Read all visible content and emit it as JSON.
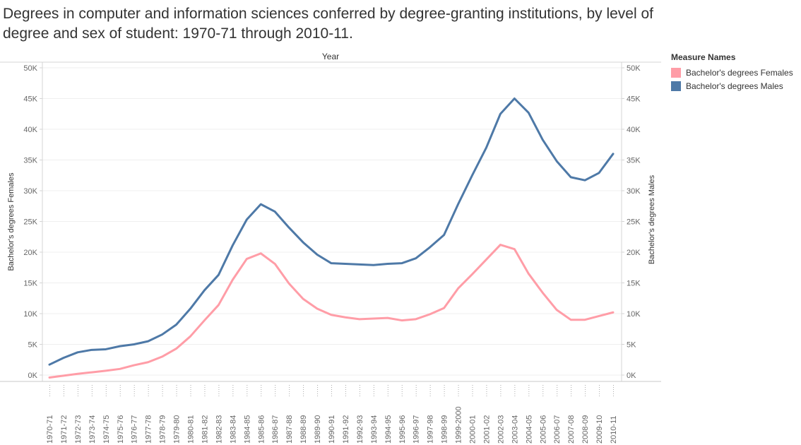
{
  "title": "Degrees in computer and information sciences conferred by degree-granting institutions, by level of degree and sex of student: 1970-71 through 2010-11.",
  "legend": {
    "title": "Measure Names",
    "items": [
      {
        "label": "Bachelor's degrees Females",
        "color": "#ff9da7"
      },
      {
        "label": "Bachelor's degrees Males",
        "color": "#4e79a7"
      }
    ]
  },
  "chart_data": {
    "type": "line",
    "column_header": "Year",
    "ylabel_left": "Bachelor's degrees Females",
    "ylabel_right": "Bachelor's degrees Males",
    "ylim": [
      0,
      50000
    ],
    "yticks": [
      0,
      5000,
      10000,
      15000,
      20000,
      25000,
      30000,
      35000,
      40000,
      45000,
      50000
    ],
    "ytick_labels": [
      "0K",
      "5K",
      "10K",
      "15K",
      "20K",
      "25K",
      "30K",
      "35K",
      "40K",
      "45K",
      "50K"
    ],
    "grid": true,
    "categories": [
      "1970-71",
      "1971-72",
      "1972-73",
      "1973-74",
      "1974-75",
      "1975-76",
      "1976-77",
      "1977-78",
      "1978-79",
      "1979-80",
      "1980-81",
      "1981-82",
      "1982-83",
      "1983-84",
      "1984-85",
      "1985-86",
      "1986-87",
      "1987-88",
      "1988-89",
      "1989-90",
      "1990-91",
      "1991-92",
      "1992-93",
      "1993-94",
      "1994-95",
      "1995-96",
      "1996-97",
      "1997-98",
      "1998-99",
      "1999-2000",
      "2000-01",
      "2001-02",
      "2002-03",
      "2003-04",
      "2004-05",
      "2005-06",
      "2006-07",
      "2007-08",
      "2008-09",
      "2009-10",
      "2010-11"
    ],
    "series": [
      {
        "name": "Bachelor's degrees Females",
        "color": "#ff9da7",
        "values": [
          -400,
          -100,
          200,
          450,
          700,
          1000,
          1600,
          2100,
          3000,
          4300,
          6300,
          8900,
          11400,
          15500,
          18900,
          19800,
          18100,
          14900,
          12400,
          10800,
          9800,
          9400,
          9100,
          9200,
          9300,
          8900,
          9100,
          9900,
          10900,
          14100,
          16400,
          18800,
          21200,
          20500,
          16500,
          13400,
          10600,
          9000,
          9000,
          9600,
          10200
        ]
      },
      {
        "name": "Bachelor's degrees Males",
        "color": "#4e79a7",
        "values": [
          1700,
          2800,
          3700,
          4100,
          4200,
          4700,
          5000,
          5500,
          6600,
          8200,
          10800,
          13800,
          16300,
          21100,
          25300,
          27800,
          26600,
          24000,
          21600,
          19600,
          18200,
          18100,
          18000,
          17900,
          18100,
          18200,
          19000,
          20800,
          22800,
          27800,
          32500,
          37000,
          42500,
          45000,
          42700,
          38300,
          34800,
          32200,
          31700,
          32900,
          36000
        ]
      }
    ]
  }
}
